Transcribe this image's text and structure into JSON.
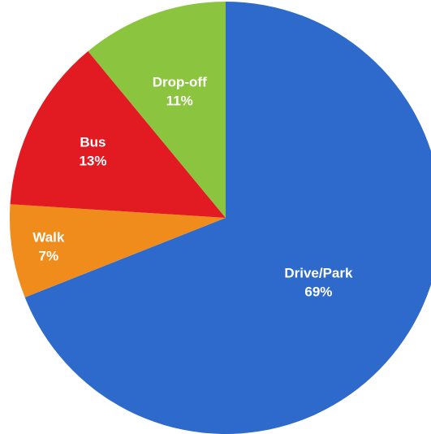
{
  "chart_data": {
    "type": "pie",
    "title": "",
    "start_angle_deg": 0,
    "direction": "clockwise",
    "slices": [
      {
        "label": "Drive/Park",
        "value": 69,
        "value_text": "69%",
        "color": "#2E6ACB"
      },
      {
        "label": "Walk",
        "value": 7,
        "value_text": "7%",
        "color": "#F08C1C"
      },
      {
        "label": "Bus",
        "value": 13,
        "value_text": "13%",
        "color": "#E21B23"
      },
      {
        "label": "Drop-off",
        "value": 11,
        "value_text": "11%",
        "color": "#8BC53F"
      }
    ]
  }
}
